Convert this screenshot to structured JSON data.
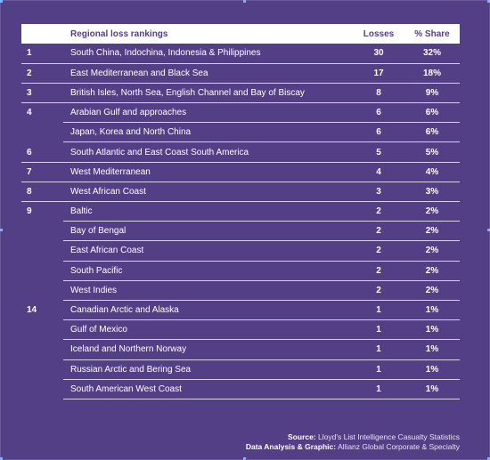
{
  "table": {
    "headers": {
      "rank": "",
      "region": "Regional loss rankings",
      "losses": "Losses",
      "share": "% Share"
    },
    "rows": [
      {
        "rank": "1",
        "region": "South China, Indochina, Indonesia & Philippines",
        "losses": "30",
        "share": "32%"
      },
      {
        "rank": "2",
        "region": "East Mediterranean and Black Sea",
        "losses": "17",
        "share": "18%"
      },
      {
        "rank": "3",
        "region": "British Isles, North Sea, English Channel and Bay of Biscay",
        "losses": "8",
        "share": "9%"
      },
      {
        "rank": "4",
        "region": "Arabian Gulf and approaches",
        "losses": "6",
        "share": "6%"
      },
      {
        "rank": "",
        "region": "Japan, Korea and North China",
        "losses": "6",
        "share": "6%"
      },
      {
        "rank": "6",
        "region": "South Atlantic and East Coast South America",
        "losses": "5",
        "share": "5%"
      },
      {
        "rank": "7",
        "region": "West Mediterranean",
        "losses": "4",
        "share": "4%"
      },
      {
        "rank": "8",
        "region": "West African Coast",
        "losses": "3",
        "share": "3%"
      },
      {
        "rank": "9",
        "region": "Baltic",
        "losses": "2",
        "share": "2%"
      },
      {
        "rank": "",
        "region": "Bay of Bengal",
        "losses": "2",
        "share": "2%"
      },
      {
        "rank": "",
        "region": "East African Coast",
        "losses": "2",
        "share": "2%"
      },
      {
        "rank": "",
        "region": "South Pacific",
        "losses": "2",
        "share": "2%"
      },
      {
        "rank": "",
        "region": "West Indies",
        "losses": "2",
        "share": "2%"
      },
      {
        "rank": "14",
        "region": "Canadian Arctic and Alaska",
        "losses": "1",
        "share": "1%"
      },
      {
        "rank": "",
        "region": "Gulf of Mexico",
        "losses": "1",
        "share": "1%"
      },
      {
        "rank": "",
        "region": "Iceland and Northern Norway",
        "losses": "1",
        "share": "1%"
      },
      {
        "rank": "",
        "region": "Russian Arctic and Bering Sea",
        "losses": "1",
        "share": "1%"
      },
      {
        "rank": "",
        "region": "South American West Coast",
        "losses": "1",
        "share": "1%"
      }
    ]
  },
  "footer": {
    "source_label": "Source:",
    "source_value": "Lloyd's List Intelligence Casualty Statistics",
    "analysis_label": "Data Analysis & Graphic:",
    "analysis_value": "Allianz Global Corporate & Specialty"
  },
  "colors": {
    "background": "#533f86",
    "header_bg": "#ffffff",
    "header_text": "#533f86",
    "row_divider": "#d9d3ea"
  }
}
